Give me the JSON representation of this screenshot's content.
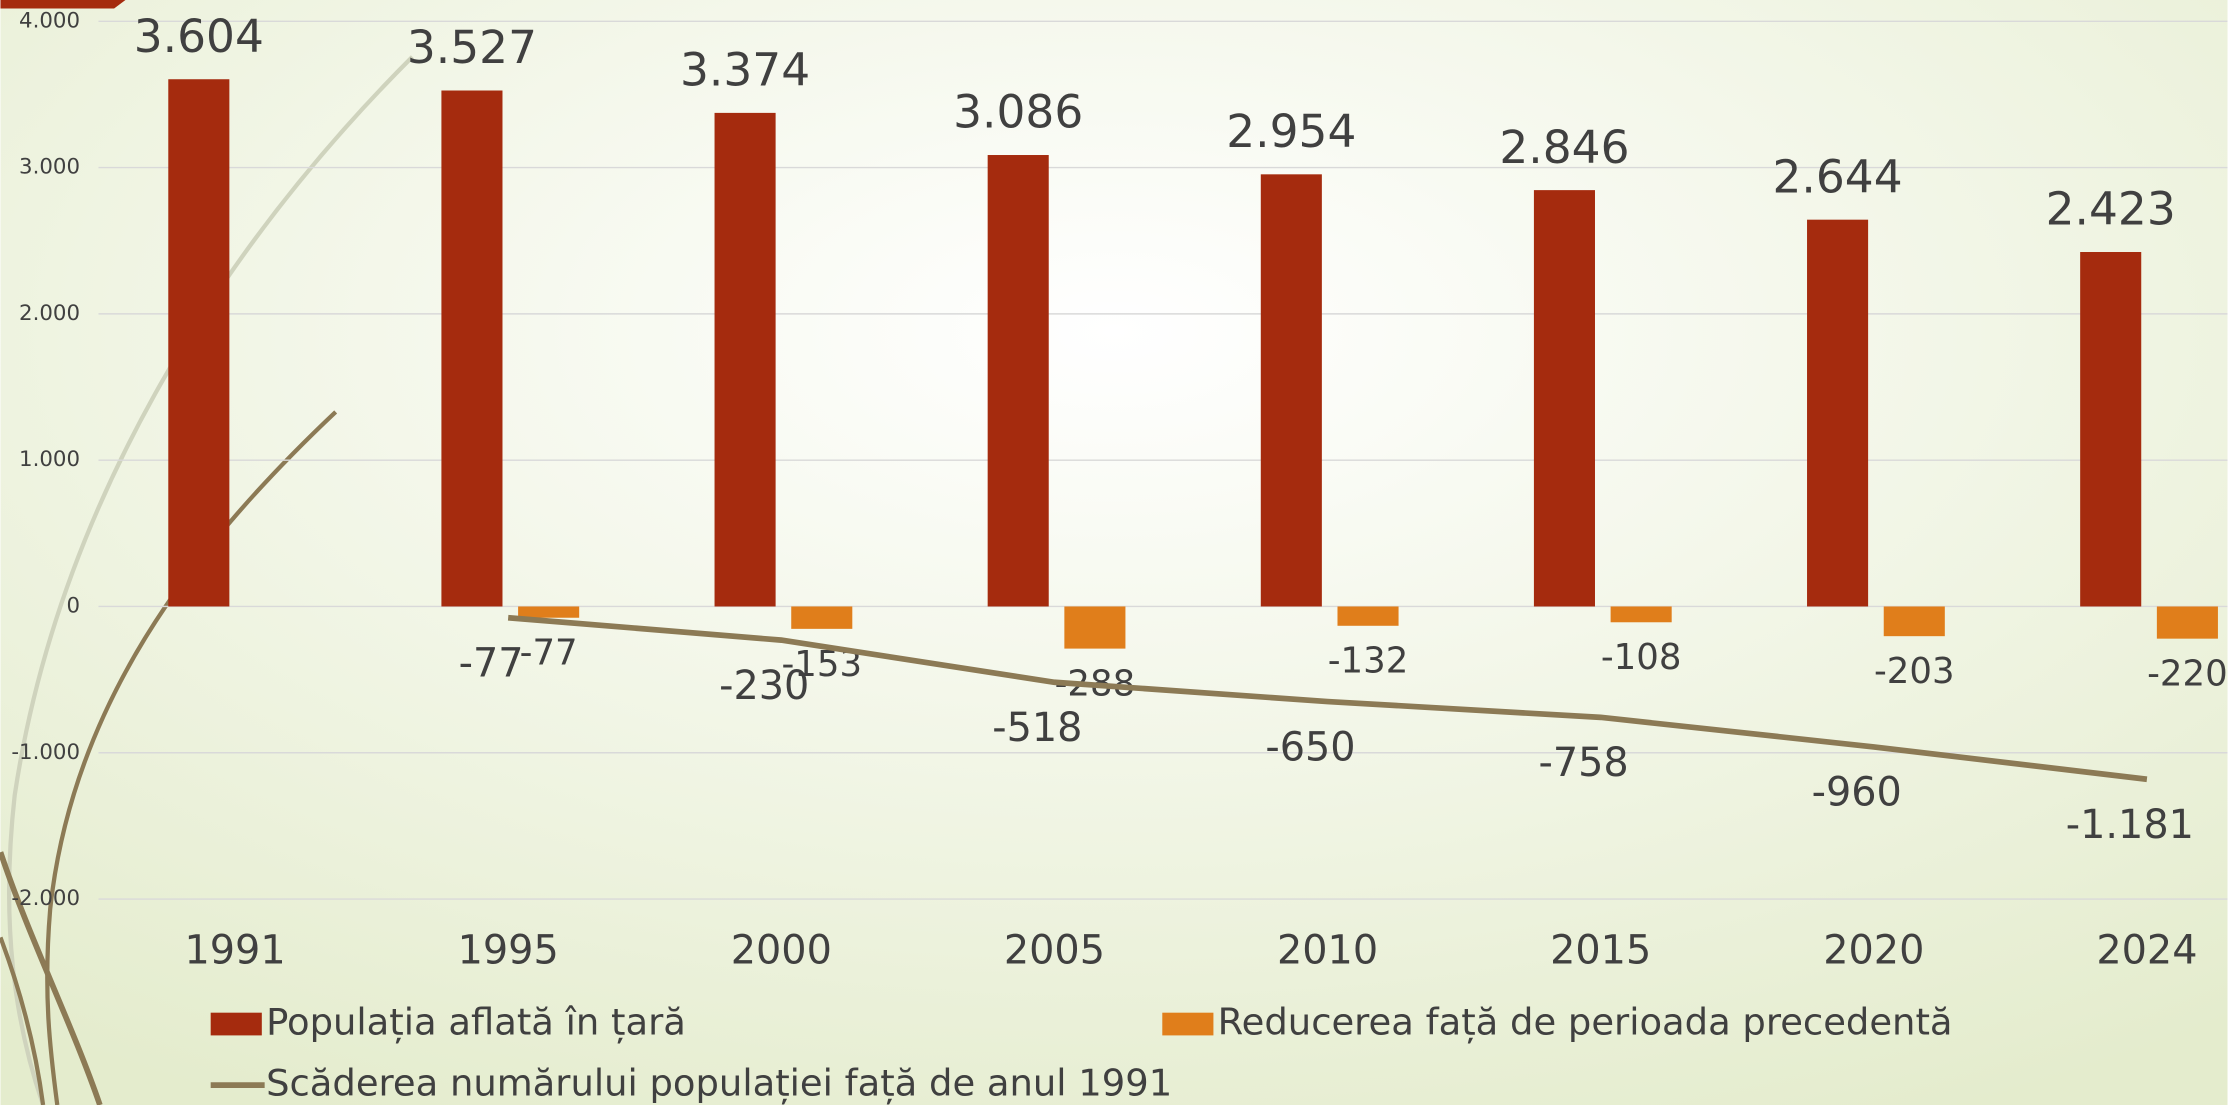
{
  "chart_data": {
    "type": "bar",
    "categories": [
      "1991",
      "1995",
      "2000",
      "2005",
      "2010",
      "2015",
      "2020",
      "2024"
    ],
    "series": [
      {
        "name": "Populația aflată în țară",
        "color": "#a52b0e",
        "kind": "bar",
        "values": [
          3604,
          3527,
          3374,
          3086,
          2954,
          2846,
          2644,
          2423
        ],
        "value_labels": [
          "3.604",
          "3.527",
          "3.374",
          "3.086",
          "2.954",
          "2.846",
          "2.644",
          "2.423"
        ]
      },
      {
        "name": "Reducerea față de perioada precedentă",
        "color": "#e07e1b",
        "kind": "bar",
        "values": [
          null,
          -77,
          -153,
          -288,
          -132,
          -108,
          -203,
          -220
        ]
      },
      {
        "name": "Scăderea numărului populației față de anul 1991",
        "color": "#8c7a55",
        "kind": "line",
        "values": [
          null,
          -77,
          -230,
          -518,
          -650,
          -758,
          -960,
          -1181
        ],
        "value_labels": [
          null,
          "-77",
          "-230",
          "-518",
          "-650",
          "-758",
          "-960",
          "-1.181"
        ]
      }
    ],
    "ylim": [
      -2000,
      4000
    ],
    "yticks": [
      {
        "value": -2000,
        "label": "-2.000"
      },
      {
        "value": -1000,
        "label": "-1.000"
      },
      0,
      {
        "value": 1000,
        "label": "1.000"
      },
      {
        "value": 2000,
        "label": "2.000"
      },
      {
        "value": 3000,
        "label": "3.000"
      },
      {
        "value": 4000,
        "label": "4.000"
      }
    ],
    "grid": true
  }
}
